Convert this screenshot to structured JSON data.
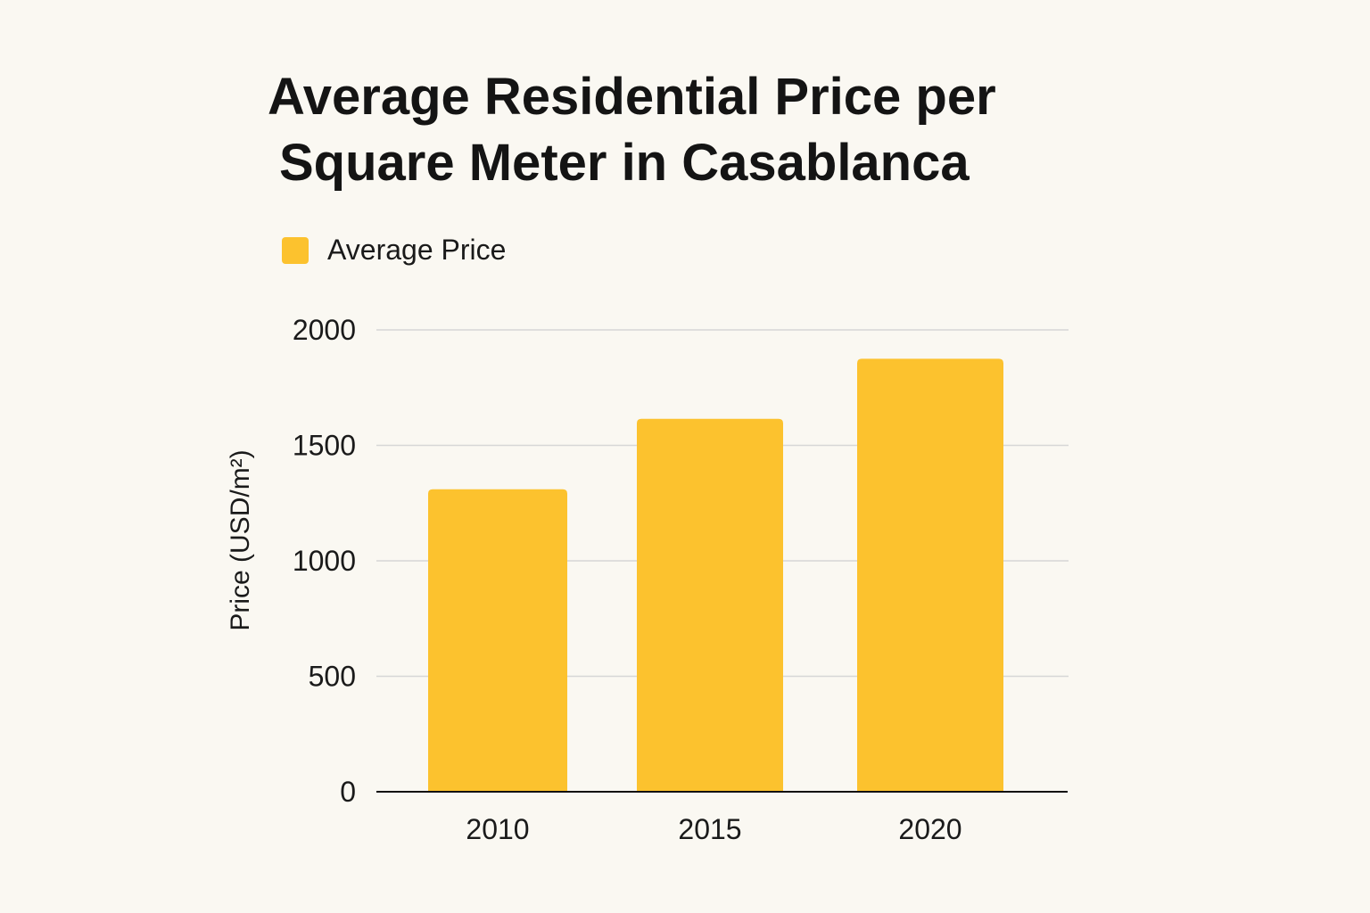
{
  "chart_data": {
    "type": "bar",
    "title_lines": [
      "Average Residential Price per",
      "Square Meter in Casablanca"
    ],
    "categories": [
      "2010",
      "2015",
      "2020"
    ],
    "series": [
      {
        "name": "Average Price",
        "values": [
          1310,
          1615,
          1875
        ],
        "color": "#fcc22e"
      }
    ],
    "xlabel": "",
    "ylabel": "Price (USD/m²)",
    "ylim": [
      0,
      2000
    ],
    "yticks": [
      0,
      500,
      1000,
      1500,
      2000
    ],
    "yticks_text": [
      "0",
      "500",
      "1000",
      "1500",
      "2000"
    ],
    "grid": true,
    "legend_position": "top-left",
    "gridline_color": "#d6d6d6",
    "axis_color": "#111111"
  }
}
